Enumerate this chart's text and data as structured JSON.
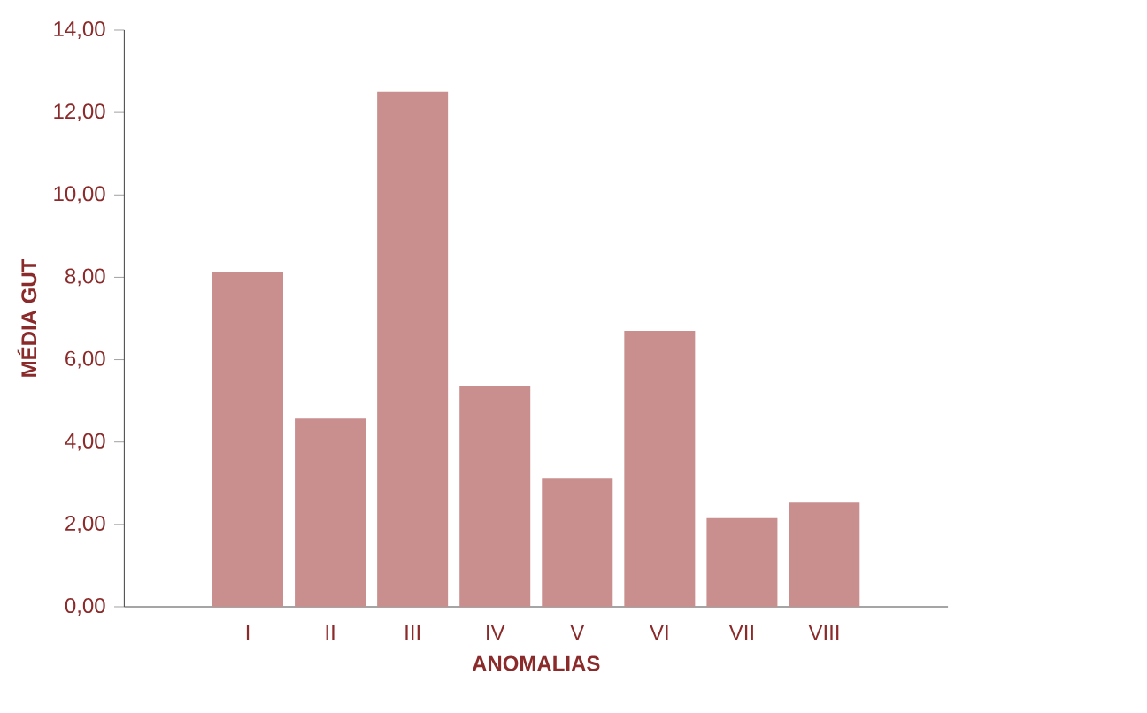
{
  "chart_data": {
    "type": "bar",
    "xlabel": "ANOMALIAS",
    "ylabel": "MÉDIA GUT",
    "categories": [
      "I",
      "II",
      "III",
      "IV",
      "V",
      "VI",
      "VII",
      "VIII"
    ],
    "values": [
      8.12,
      4.57,
      12.5,
      5.37,
      3.13,
      6.7,
      2.15,
      2.53
    ],
    "color": "#c98e8e",
    "ylim": [
      0,
      14
    ],
    "yticks": [
      {
        "value": 0,
        "label": "0,00"
      },
      {
        "value": 2,
        "label": "2,00"
      },
      {
        "value": 4,
        "label": "4,00"
      },
      {
        "value": 6,
        "label": "6,00"
      },
      {
        "value": 8,
        "label": "8,00"
      },
      {
        "value": 10,
        "label": "10,00"
      },
      {
        "value": 12,
        "label": "12,00"
      },
      {
        "value": 14,
        "label": "14,00"
      }
    ],
    "grid": false
  }
}
